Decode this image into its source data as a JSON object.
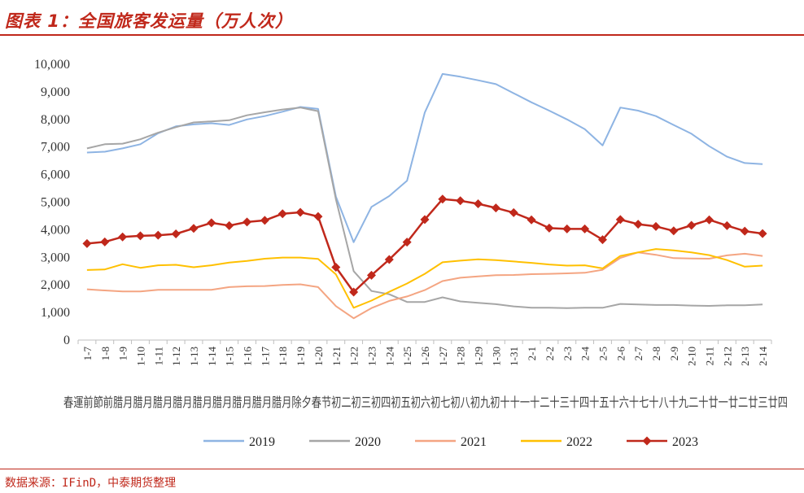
{
  "header": {
    "title": "图表 1：全国旅客发运量（万人次）"
  },
  "footer": {
    "source": "数据来源：IFinD，中泰期货整理"
  },
  "chart_data": {
    "type": "line",
    "title": "全国旅客发运量（万人次）",
    "xlabel": "",
    "ylabel": "",
    "ylim": [
      0,
      10000
    ],
    "yticks": [
      "0",
      "1,000",
      "2,000",
      "3,000",
      "4,000",
      "5,000",
      "6,000",
      "7,000",
      "8,000",
      "9,000",
      "10,000"
    ],
    "categories": [
      "1-7",
      "1-8",
      "1-9",
      "1-10",
      "1-11",
      "1-12",
      "1-13",
      "1-14",
      "1-15",
      "1-16",
      "1-17",
      "1-18",
      "1-19",
      "1-20",
      "1-21",
      "1-22",
      "1-23",
      "1-24",
      "1-25",
      "1-26",
      "1-27",
      "1-28",
      "1-29",
      "1-30",
      "1-31",
      "2-1",
      "2-2",
      "2-3",
      "2-4",
      "2-5",
      "2-6",
      "2-7",
      "2-8",
      "2-9",
      "2-10",
      "2-11",
      "2-12",
      "2-13",
      "2-14"
    ],
    "category_sublabel_text": "春運前節前腊月腊月腊月腊月腊月腊月腊月腊月腊月除夕春节初二初三初四初五初六初七初八初九初十十一十二十三十四十五十六十七十八十九二十廿一廿二廿三廿四",
    "legend_position": "bottom",
    "grid": false,
    "series": [
      {
        "name": "2019",
        "color": "#8eb4e3",
        "marker": "none",
        "values": [
          6800,
          6830,
          6950,
          7100,
          7500,
          7750,
          7820,
          7860,
          7800,
          8000,
          8120,
          8280,
          8450,
          8380,
          5200,
          3550,
          4830,
          5220,
          5780,
          8250,
          9650,
          9550,
          9420,
          9280,
          8950,
          8620,
          8320,
          8000,
          7650,
          7060,
          8430,
          8320,
          8120,
          7800,
          7480,
          7030,
          6650,
          6420,
          6380
        ]
      },
      {
        "name": "2020",
        "color": "#a6a6a6",
        "marker": "none",
        "values": [
          6950,
          7100,
          7120,
          7280,
          7520,
          7720,
          7890,
          7930,
          7970,
          8150,
          8260,
          8360,
          8430,
          8300,
          5100,
          2500,
          1780,
          1660,
          1380,
          1380,
          1550,
          1400,
          1350,
          1300,
          1220,
          1170,
          1170,
          1160,
          1170,
          1170,
          1310,
          1290,
          1270,
          1270,
          1250,
          1240,
          1260,
          1260,
          1290
        ]
      },
      {
        "name": "2021",
        "color": "#f4a582",
        "marker": "none",
        "values": [
          1840,
          1800,
          1760,
          1760,
          1820,
          1820,
          1820,
          1820,
          1920,
          1950,
          1960,
          2000,
          2020,
          1920,
          1230,
          790,
          1160,
          1420,
          1580,
          1810,
          2140,
          2260,
          2310,
          2350,
          2360,
          2390,
          2400,
          2420,
          2440,
          2550,
          2980,
          3180,
          3090,
          2970,
          2960,
          2950,
          3070,
          3130,
          3050
        ]
      },
      {
        "name": "2022",
        "color": "#ffc000",
        "marker": "none",
        "values": [
          2540,
          2560,
          2750,
          2620,
          2710,
          2730,
          2640,
          2710,
          2810,
          2870,
          2950,
          2990,
          2990,
          2940,
          2380,
          1170,
          1430,
          1750,
          2050,
          2400,
          2820,
          2880,
          2930,
          2900,
          2850,
          2800,
          2740,
          2700,
          2710,
          2600,
          3050,
          3180,
          3300,
          3250,
          3180,
          3080,
          2900,
          2660,
          2700
        ]
      },
      {
        "name": "2023",
        "color": "#c0281b",
        "marker": "diamond",
        "values": [
          3500,
          3560,
          3740,
          3780,
          3800,
          3850,
          4050,
          4250,
          4150,
          4280,
          4340,
          4580,
          4630,
          4480,
          2640,
          1740,
          2350,
          2920,
          3550,
          4370,
          5110,
          5050,
          4940,
          4790,
          4620,
          4360,
          4060,
          4030,
          4030,
          3640,
          4370,
          4200,
          4120,
          3960,
          4160,
          4360,
          4150,
          3950,
          3860
        ]
      }
    ]
  }
}
